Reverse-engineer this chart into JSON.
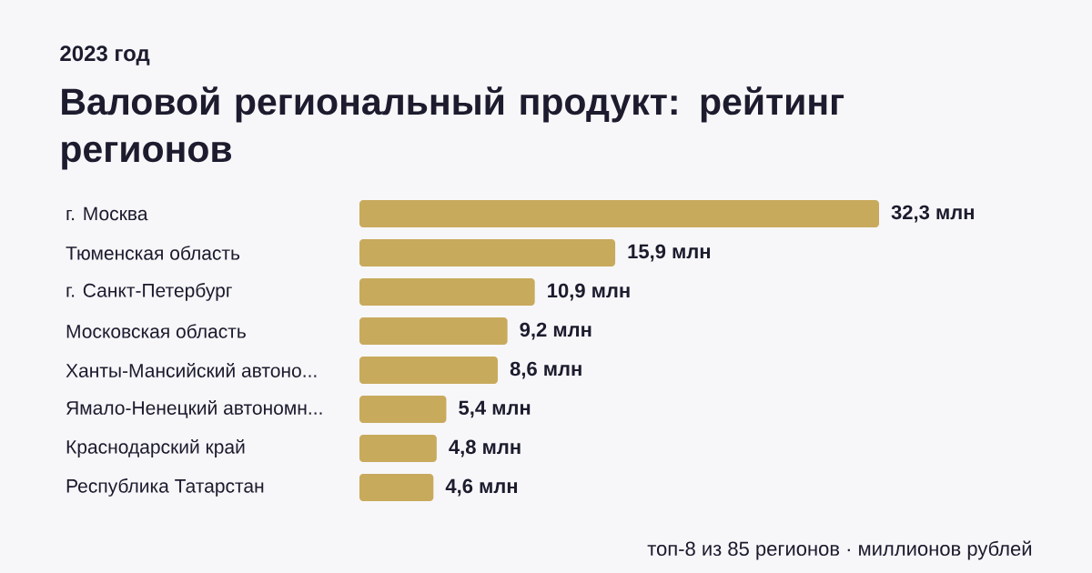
{
  "chart_data": {
    "type": "bar",
    "orientation": "horizontal",
    "title": "Валовой региональный продукт: рейтинг регионов",
    "subtitle": "2023 год",
    "categories": [
      "г. Москва",
      "Тюменская область",
      "г. Санкт-Петербург",
      "Московская область",
      "Ханты-Мансийский автоно...",
      "Ямало-Ненецкий автономн...",
      "Краснодарский край",
      "Республика Татарстан"
    ],
    "values": [
      32.3,
      15.9,
      10.9,
      9.2,
      8.6,
      5.4,
      4.8,
      4.6
    ],
    "value_labels": [
      "32,3 млн",
      "15,9 млн",
      "10,9 млн",
      "9,2 млн",
      "8,6 млн",
      "5,4 млн",
      "4,8 млн",
      "4,6 млн"
    ],
    "color": "#c8aa5c",
    "annotations": [
      "топ-8 из 85 регионов · миллионов рублей"
    ]
  }
}
